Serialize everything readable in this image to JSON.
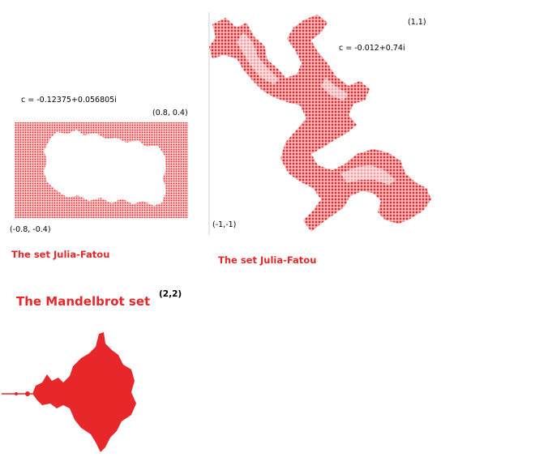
{
  "left_panel": {
    "c_value": "c = -0.12375+0.056805i",
    "corner_top_right": "(0.8, 0.4)",
    "corner_bottom_left": "(-0.8, -0.4)",
    "caption": "The set Julia-Fatou"
  },
  "right_panel": {
    "corner_top_right": "(1,1)",
    "c_value": "c = -0.012+0.74i",
    "corner_bottom_left": "(-1,-1)",
    "caption": "The set Julia-Fatou"
  },
  "mandelbrot": {
    "title": "The Mandelbrot set",
    "corner": "(2,2)"
  },
  "colors": {
    "accent": "#e8272b",
    "text": "#000000",
    "background": "#ffffff"
  }
}
